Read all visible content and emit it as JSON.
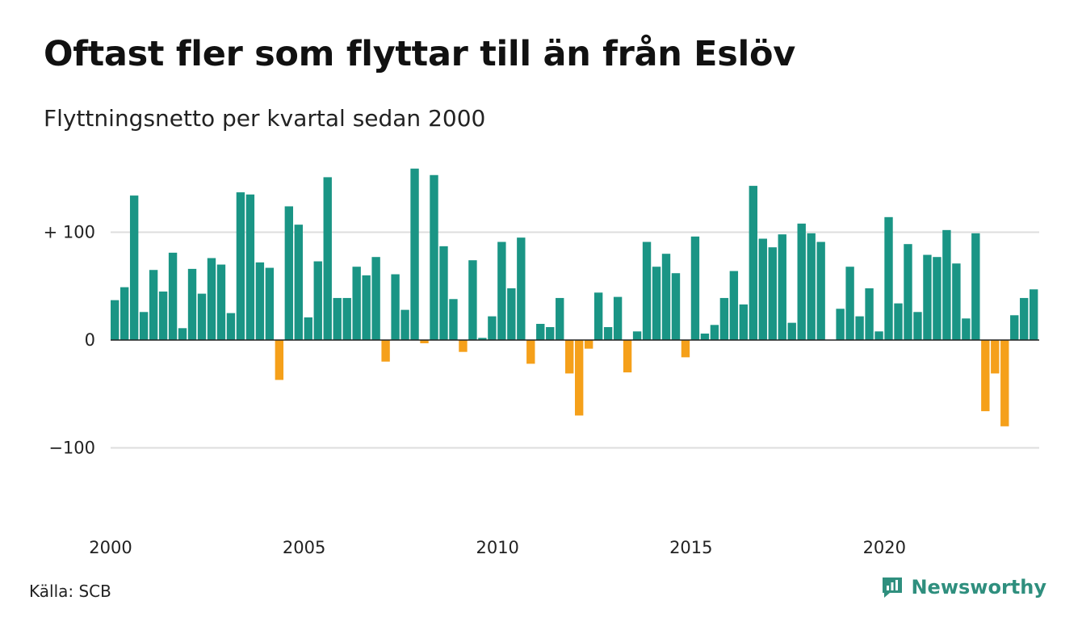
{
  "header": {
    "title": "Oftast fler som flyttar till än från Eslöv",
    "subtitle": "Flyttningsnetto per kvartal sedan 2000"
  },
  "footer": {
    "source": "Källa: SCB",
    "brand": "Newsworthy"
  },
  "colors": {
    "positive": "#1a9585",
    "negative": "#f5a01a",
    "grid": "#dddddd",
    "zero_line": "#222222",
    "brand": "#2f8f7e"
  },
  "chart_data": {
    "type": "bar",
    "x_start": "2000 Q1",
    "values": [
      37,
      49,
      134,
      26,
      65,
      45,
      81,
      11,
      66,
      43,
      76,
      70,
      25,
      137,
      135,
      72,
      67,
      -37,
      124,
      107,
      21,
      73,
      151,
      39,
      39,
      68,
      60,
      77,
      -20,
      61,
      28,
      159,
      -3,
      153,
      87,
      38,
      -11,
      74,
      2,
      22,
      91,
      48,
      95,
      -22,
      15,
      12,
      39,
      -31,
      -70,
      -8,
      44,
      12,
      40,
      -30,
      8,
      91,
      68,
      80,
      62,
      -16,
      96,
      6,
      14,
      39,
      64,
      33,
      143,
      94,
      86,
      98,
      16,
      108,
      99,
      91,
      0,
      29,
      68,
      22,
      48,
      8,
      114,
      34,
      89,
      26,
      79,
      77,
      102,
      71,
      20,
      99,
      -66,
      -31,
      -80,
      23,
      39,
      47
    ],
    "x_tick_labels": [
      "2000",
      "2005",
      "2010",
      "2015",
      "2020"
    ],
    "y_tick_labels": [
      "+ 100",
      "0",
      "−100"
    ],
    "y_ticks": [
      100,
      0,
      -100
    ],
    "ylim": [
      -175,
      160
    ],
    "grid": true,
    "legend": "none"
  }
}
